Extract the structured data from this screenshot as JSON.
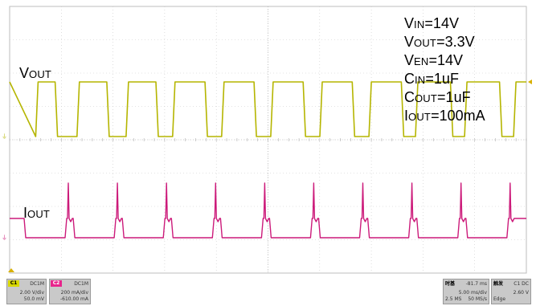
{
  "chart_data": {
    "type": "line",
    "title": "",
    "xlabel": "",
    "ylabel": "",
    "grid": true,
    "series": [
      {
        "name": "VOUT",
        "color": "#b5b500",
        "waveform": "pulse train",
        "rising_edges_x_div": [
          0.55,
          1.35,
          2.3,
          3.2,
          4.15,
          5.1,
          6.05,
          7.0,
          7.9,
          8.85,
          9.8
        ],
        "falling_edges_x_div": [
          0.88,
          1.88,
          2.83,
          3.78,
          4.73,
          5.68,
          6.63,
          7.58,
          8.53,
          9.48
        ]
      },
      {
        "name": "IOUT",
        "color": "#cc1a7a",
        "waveform": "pulsed current with spikes",
        "spike_x_div": [
          1.12,
          2.07,
          3.02,
          3.97,
          4.92,
          5.87,
          6.82,
          7.77,
          8.72,
          9.67
        ]
      }
    ],
    "annotations": [
      {
        "main": "V",
        "sub": "IN",
        "rest": "=14V"
      },
      {
        "main": "V",
        "sub": "OUT",
        "rest": "=3.3V"
      },
      {
        "main": "V",
        "sub": "EN",
        "rest": "=14V"
      },
      {
        "main": "C",
        "sub": "IN",
        "rest": "=1uF"
      },
      {
        "main": "C",
        "sub": "OUT",
        "rest": "=1uF"
      },
      {
        "main": "I",
        "sub": "OUT",
        "rest": "=100mA"
      }
    ],
    "trace_labels": {
      "vout": {
        "main": "V",
        "sub": "OUT"
      },
      "iout": {
        "main": "I",
        "sub": "OUT"
      }
    }
  },
  "status": {
    "c1": {
      "tag": "C1",
      "coupling": "DC1M",
      "scale": "2.00 V/div",
      "offset": "50.0 mV"
    },
    "c2": {
      "tag": "C2",
      "coupling": "DC1M",
      "scale": "200 mA/div",
      "offset": "-610.00 mA"
    },
    "timebase": {
      "title": "时基",
      "delay": "-81.7 ms",
      "scale": "5.00 ms/div",
      "samples": "2.5 MS",
      "rate": "50 MS/s"
    },
    "trigger": {
      "title": "触发",
      "source": "C1 DC",
      "level": "2.60 V",
      "type": "Edge"
    }
  },
  "colors": {
    "grid": "#c8c8c8",
    "vout": "#b5b500",
    "iout": "#cc1a7a"
  }
}
